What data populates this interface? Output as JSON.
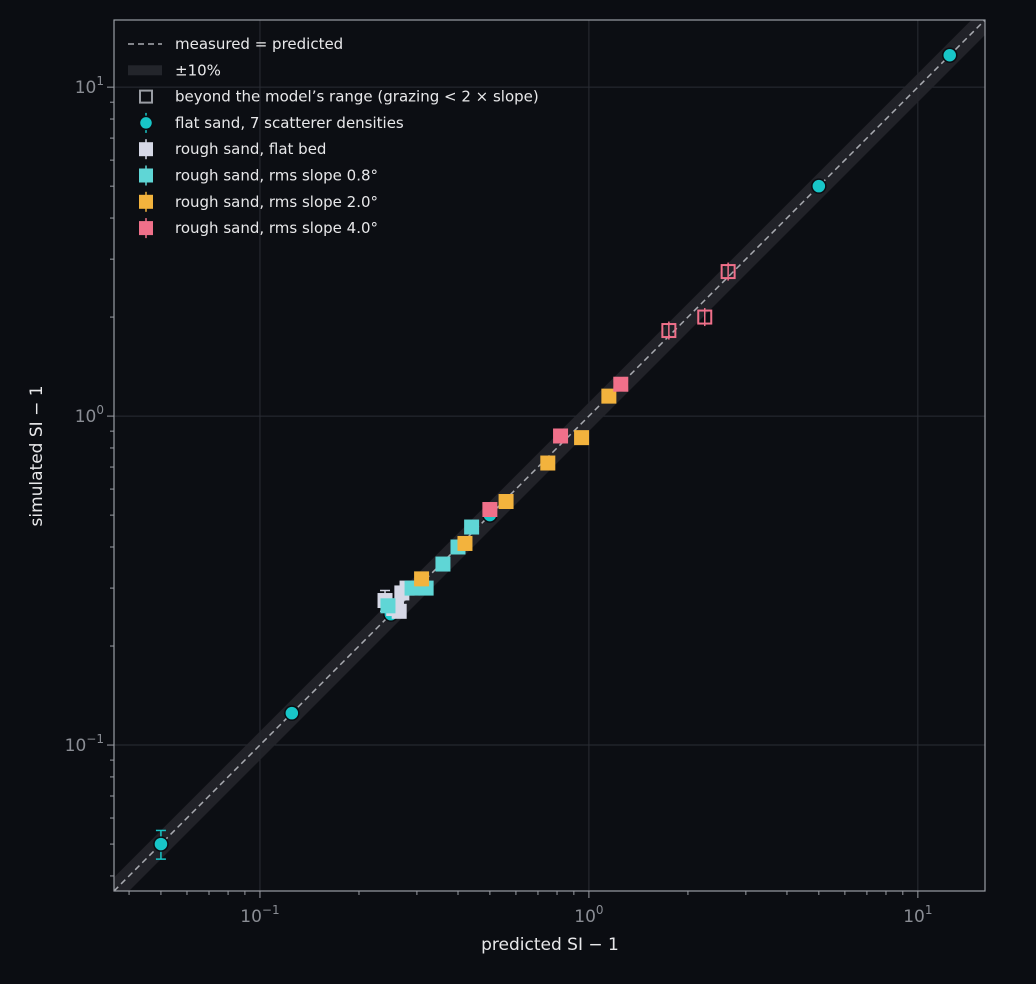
{
  "chart_data": {
    "type": "scatter",
    "xlabel": "predicted SI − 1",
    "ylabel": "simulated SI − 1",
    "xscale": "log",
    "yscale": "log",
    "xlim": [
      0.036,
      16
    ],
    "ylim": [
      0.036,
      16
    ],
    "x_ticks": [
      {
        "value": 0.1,
        "base": "10",
        "exp": "−1"
      },
      {
        "value": 1,
        "base": "10",
        "exp": "0"
      },
      {
        "value": 10,
        "base": "10",
        "exp": "1"
      }
    ],
    "y_ticks": [
      {
        "value": 0.1,
        "base": "10",
        "exp": "−1"
      },
      {
        "value": 1,
        "base": "10",
        "exp": "0"
      },
      {
        "value": 10,
        "base": "10",
        "exp": "1"
      }
    ],
    "grid": true,
    "legend_position": "top-left",
    "reference_line": {
      "name": "measured = predicted",
      "style": "dashed"
    },
    "band": {
      "name": "±10%",
      "fraction": 0.1
    },
    "out_of_range_marker": {
      "name": "beyond the model’s range (grazing < 2 × slope)"
    },
    "series": [
      {
        "name": "flat sand, 7 scatterer densities",
        "marker": "circle",
        "color": "#18c6c8",
        "points": [
          {
            "x": 0.05,
            "y": 0.05,
            "err": 0.005
          },
          {
            "x": 0.125,
            "y": 0.125
          },
          {
            "x": 0.25,
            "y": 0.25
          },
          {
            "x": 0.5,
            "y": 0.5
          },
          {
            "x": 1.25,
            "y": 1.25
          },
          {
            "x": 5.0,
            "y": 5.0
          },
          {
            "x": 12.5,
            "y": 12.5
          }
        ]
      },
      {
        "name": "rough sand, flat bed",
        "marker": "square",
        "color": "#d6d8e6",
        "points": [
          {
            "x": 0.24,
            "y": 0.275,
            "err": 0.02
          },
          {
            "x": 0.255,
            "y": 0.26
          },
          {
            "x": 0.27,
            "y": 0.29
          },
          {
            "x": 0.28,
            "y": 0.3
          },
          {
            "x": 0.26,
            "y": 0.265
          },
          {
            "x": 0.265,
            "y": 0.255
          }
        ]
      },
      {
        "name": "rough sand, rms slope 0.8°",
        "marker": "square",
        "color": "#5fd6d6",
        "points": [
          {
            "x": 0.245,
            "y": 0.265
          },
          {
            "x": 0.29,
            "y": 0.3
          },
          {
            "x": 0.32,
            "y": 0.3
          },
          {
            "x": 0.36,
            "y": 0.355
          },
          {
            "x": 0.4,
            "y": 0.4
          },
          {
            "x": 0.44,
            "y": 0.46
          }
        ]
      },
      {
        "name": "rough sand, rms slope 2.0°",
        "marker": "square",
        "color": "#f3b33d",
        "points": [
          {
            "x": 0.31,
            "y": 0.32
          },
          {
            "x": 0.42,
            "y": 0.41
          },
          {
            "x": 0.56,
            "y": 0.55
          },
          {
            "x": 0.75,
            "y": 0.72
          },
          {
            "x": 0.95,
            "y": 0.86
          },
          {
            "x": 1.15,
            "y": 1.15
          }
        ]
      },
      {
        "name": "rough sand, rms slope 4.0°",
        "marker": "square",
        "color": "#f0708a",
        "points": [
          {
            "x": 0.5,
            "y": 0.52
          },
          {
            "x": 0.82,
            "y": 0.87
          },
          {
            "x": 1.25,
            "y": 1.25
          },
          {
            "x": 1.75,
            "y": 1.82,
            "out_of_range": true
          },
          {
            "x": 2.25,
            "y": 2.0,
            "out_of_range": true
          },
          {
            "x": 2.65,
            "y": 2.75,
            "out_of_range": true
          }
        ]
      }
    ]
  }
}
